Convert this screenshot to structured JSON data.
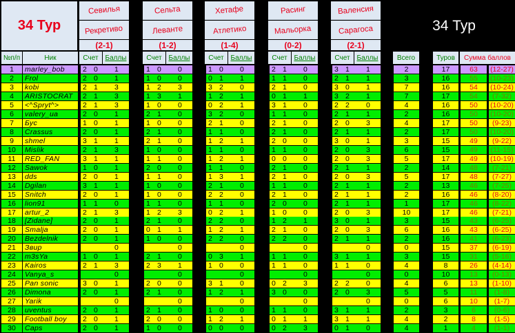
{
  "header": {
    "left_title": "34 Тур",
    "right_title": "34 Тур",
    "matches": [
      {
        "home": "Севилья",
        "away": "Рекретиво",
        "result": "(2-1)"
      },
      {
        "home": "Сельта",
        "away": "Леванте",
        "result": "(1-2)"
      },
      {
        "home": "Хетафе",
        "away": "Атлетико",
        "result": "(1-4)"
      },
      {
        "home": "Расинг",
        "away": "Мальорка",
        "result": "(0-2)"
      },
      {
        "home": "Валенсия",
        "away": "Сарагоса",
        "result": "(2-1)"
      }
    ],
    "columns": {
      "num": "№п/п",
      "nick": "Ник",
      "score": "Счет",
      "points": "Баллы",
      "total": "Всего",
      "tours": "Туров",
      "sum": "Сумма баллов"
    }
  },
  "colors": {
    "green": "#00ee00",
    "yellow": "#ffff00",
    "highlight": "#cc99ff",
    "red": "#e8001c",
    "olive": "#7a7a00"
  },
  "rows": [
    {
      "n": "1",
      "nick": "marley_bob",
      "m": [
        [
          "2",
          "0",
          "1"
        ],
        [
          "1",
          "0",
          "0"
        ],
        [
          "1",
          "0",
          "0"
        ],
        [
          "2",
          "1",
          "0"
        ],
        [
          "3",
          "1",
          "1"
        ]
      ],
      "total": "2",
      "tours": "17",
      "sum": "63",
      "range": "(12-27)"
    },
    {
      "n": "2",
      "nick": "Frol",
      "m": [
        [
          "2",
          "0",
          "1"
        ],
        [
          "1",
          "0",
          "0"
        ],
        [
          "0",
          "1",
          "1"
        ],
        [
          "1",
          "1",
          "0"
        ],
        [
          "2",
          "1",
          "1"
        ]
      ],
      "total": "3",
      "tours": "16",
      "sum": "55",
      "range": "(10-23)"
    },
    {
      "n": "3",
      "nick": "kobi",
      "m": [
        [
          "2",
          "1",
          "3"
        ],
        [
          "1",
          "2",
          "3"
        ],
        [
          "3",
          "2",
          "0"
        ],
        [
          "2",
          "1",
          "0"
        ],
        [
          "3",
          "0",
          "1"
        ]
      ],
      "total": "7",
      "tours": "16",
      "sum": "54",
      "range": "(10-24)"
    },
    {
      "n": "4",
      "nick": "ARISTOCRAT",
      "m": [
        [
          "2",
          "1",
          "3"
        ],
        [
          "1",
          "3",
          "1"
        ],
        [
          "1",
          "2",
          "1"
        ],
        [
          "0",
          "1",
          "1"
        ],
        [
          "3",
          "2",
          "1"
        ]
      ],
      "total": "7",
      "tours": "17",
      "sum": "54",
      "range": "(7-32)"
    },
    {
      "n": "5",
      "nick": "<^Spryt^>",
      "m": [
        [
          "2",
          "1",
          "3"
        ],
        [
          "1",
          "0",
          "0"
        ],
        [
          "0",
          "2",
          "1"
        ],
        [
          "3",
          "1",
          "0"
        ],
        [
          "2",
          "2",
          "0"
        ]
      ],
      "total": "4",
      "tours": "16",
      "sum": "50",
      "range": "(10-20)"
    },
    {
      "n": "6",
      "nick": "valery_ua",
      "m": [
        [
          "2",
          "0",
          "1"
        ],
        [
          "2",
          "1",
          "0"
        ],
        [
          "3",
          "2",
          "0"
        ],
        [
          "1",
          "1",
          "0"
        ],
        [
          "2",
          "1",
          "1"
        ]
      ],
      "total": "2",
      "tours": "16",
      "sum": "50",
      "range": "(10-20)"
    },
    {
      "n": "7",
      "nick": "Бус",
      "m": [
        [
          "1",
          "0",
          "1"
        ],
        [
          "1",
          "0",
          "0"
        ],
        [
          "2",
          "1",
          "0"
        ],
        [
          "2",
          "1",
          "0"
        ],
        [
          "2",
          "0",
          "3"
        ]
      ],
      "total": "4",
      "tours": "17",
      "sum": "50",
      "range": "(9-23)"
    },
    {
      "n": "8",
      "nick": "Crassus",
      "m": [
        [
          "2",
          "0",
          "1"
        ],
        [
          "2",
          "1",
          "0"
        ],
        [
          "1",
          "1",
          "0"
        ],
        [
          "2",
          "1",
          "0"
        ],
        [
          "2",
          "1",
          "1"
        ]
      ],
      "total": "2",
      "tours": "17",
      "sum": "50",
      "range": "(10-20)"
    },
    {
      "n": "9",
      "nick": "shmel",
      "m": [
        [
          "3",
          "1",
          "1"
        ],
        [
          "2",
          "1",
          "0"
        ],
        [
          "1",
          "2",
          "1"
        ],
        [
          "2",
          "0",
          "0"
        ],
        [
          "3",
          "0",
          "1"
        ]
      ],
      "total": "3",
      "tours": "15",
      "sum": "49",
      "range": "(9-22)"
    },
    {
      "n": "10",
      "nick": "Mislik",
      "m": [
        [
          "2",
          "1",
          "3"
        ],
        [
          "1",
          "0",
          "0"
        ],
        [
          "1",
          "1",
          "0"
        ],
        [
          "1",
          "1",
          "0"
        ],
        [
          "2",
          "0",
          "3"
        ]
      ],
      "total": "6",
      "tours": "15",
      "sum": "49",
      "range": "(11-15)"
    },
    {
      "n": "11",
      "nick": "RED_FAN",
      "m": [
        [
          "3",
          "1",
          "1"
        ],
        [
          "1",
          "1",
          "0"
        ],
        [
          "1",
          "2",
          "1"
        ],
        [
          "0",
          "0",
          "0"
        ],
        [
          "2",
          "0",
          "3"
        ]
      ],
      "total": "5",
      "tours": "17",
      "sum": "49",
      "range": "(10-19)"
    },
    {
      "n": "12",
      "nick": "Sawok",
      "m": [
        [
          "1",
          "0",
          "1"
        ],
        [
          "2",
          "0",
          "0"
        ],
        [
          "1",
          "1",
          "0"
        ],
        [
          "2",
          "1",
          "0"
        ],
        [
          "2",
          "1",
          "1"
        ]
      ],
      "total": "2",
      "tours": "14",
      "sum": "48",
      "range": "(7-21)"
    },
    {
      "n": "13",
      "nick": "dds",
      "m": [
        [
          "2",
          "0",
          "1"
        ],
        [
          "1",
          "1",
          "0"
        ],
        [
          "1",
          "3",
          "1"
        ],
        [
          "2",
          "1",
          "0"
        ],
        [
          "2",
          "0",
          "3"
        ]
      ],
      "total": "5",
      "tours": "17",
      "sum": "48",
      "range": "(7-27)"
    },
    {
      "n": "14",
      "nick": "Dgilan",
      "m": [
        [
          "3",
          "1",
          "1"
        ],
        [
          "1",
          "0",
          "0"
        ],
        [
          "2",
          "1",
          "0"
        ],
        [
          "1",
          "1",
          "0"
        ],
        [
          "2",
          "1",
          "1"
        ]
      ],
      "total": "2",
      "tours": "13",
      "sum": "46",
      "range": "(7-25)"
    },
    {
      "n": "15",
      "nick": "Snitch",
      "m": [
        [
          "2",
          "0",
          "1"
        ],
        [
          "1",
          "0",
          "0"
        ],
        [
          "2",
          "2",
          "0"
        ],
        [
          "2",
          "1",
          "0"
        ],
        [
          "2",
          "1",
          "1"
        ]
      ],
      "total": "2",
      "tours": "16",
      "sum": "46",
      "range": "(8-20)"
    },
    {
      "n": "16",
      "nick": "lion91",
      "m": [
        [
          "1",
          "1",
          "0"
        ],
        [
          "1",
          "1",
          "0"
        ],
        [
          "1",
          "1",
          "0"
        ],
        [
          "2",
          "0",
          "0"
        ],
        [
          "2",
          "1",
          "1"
        ]
      ],
      "total": "1",
      "tours": "17",
      "sum": "46",
      "range": "(8-22)"
    },
    {
      "n": "17",
      "nick": "artur_2",
      "m": [
        [
          "2",
          "1",
          "3"
        ],
        [
          "1",
          "2",
          "3"
        ],
        [
          "0",
          "2",
          "1"
        ],
        [
          "1",
          "0",
          "0"
        ],
        [
          "2",
          "0",
          "3"
        ]
      ],
      "total": "10",
      "tours": "17",
      "sum": "46",
      "range": "(7-21)"
    },
    {
      "n": "18",
      "nick": "[Zidane]",
      "m": [
        [
          "2",
          "0",
          "1"
        ],
        [
          "2",
          "1",
          "0"
        ],
        [
          "2",
          "2",
          "0"
        ],
        [
          "1",
          "2",
          "1"
        ],
        [
          "3",
          "0",
          "1"
        ]
      ],
      "total": "3",
      "tours": "15",
      "sum": "43",
      "range": "(6-25)"
    },
    {
      "n": "19",
      "nick": "Smalja",
      "m": [
        [
          "2",
          "0",
          "1"
        ],
        [
          "0",
          "1",
          "1"
        ],
        [
          "1",
          "2",
          "1"
        ],
        [
          "2",
          "1",
          "0"
        ],
        [
          "2",
          "0",
          "3"
        ]
      ],
      "total": "6",
      "tours": "16",
      "sum": "43",
      "range": "(6-25)"
    },
    {
      "n": "20",
      "nick": "Bezdelnik",
      "m": [
        [
          "2",
          "0",
          "1"
        ],
        [
          "1",
          "0",
          "0"
        ],
        [
          "2",
          "2",
          "0"
        ],
        [
          "2",
          "2",
          "0"
        ],
        [
          "2",
          "1",
          "1"
        ]
      ],
      "total": "2",
      "tours": "16",
      "sum": "41",
      "range": "(6-23)"
    },
    {
      "n": "21",
      "nick": "Звир",
      "m": [
        [
          "",
          "",
          "0"
        ],
        [
          "",
          "",
          "0"
        ],
        [
          "",
          "",
          "0"
        ],
        [
          "",
          "",
          "0"
        ],
        [
          "",
          "",
          "0"
        ]
      ],
      "total": "0",
      "tours": "15",
      "sum": "37",
      "range": "(6-19)"
    },
    {
      "n": "22",
      "nick": "m3sYa",
      "m": [
        [
          "1",
          "0",
          "1"
        ],
        [
          "2",
          "1",
          "0"
        ],
        [
          "0",
          "3",
          "1"
        ],
        [
          "1",
          "1",
          "0"
        ],
        [
          "3",
          "1",
          "1"
        ]
      ],
      "total": "3",
      "tours": "15",
      "sum": "31",
      "range": "(5-16)"
    },
    {
      "n": "23",
      "nick": "Kairos",
      "m": [
        [
          "2",
          "1",
          "3"
        ],
        [
          "2",
          "3",
          "1"
        ],
        [
          "1",
          "0",
          "0"
        ],
        [
          "1",
          "1",
          "0"
        ],
        [
          "1",
          "1",
          "0"
        ]
      ],
      "total": "4",
      "tours": "8",
      "sum": "26",
      "range": "(4-14)"
    },
    {
      "n": "24",
      "nick": "Vanya_s",
      "m": [
        [
          "",
          "",
          "0"
        ],
        [
          "",
          "",
          "0"
        ],
        [
          "",
          "",
          "0"
        ],
        [
          "",
          "",
          "0"
        ],
        [
          "",
          "",
          "0"
        ]
      ],
      "total": "0",
      "tours": "10",
      "sum": "13",
      "range": "(0-13)"
    },
    {
      "n": "25",
      "nick": "Pan sonic",
      "m": [
        [
          "3",
          "0",
          "1"
        ],
        [
          "2",
          "0",
          "0"
        ],
        [
          "3",
          "1",
          "0"
        ],
        [
          "0",
          "2",
          "3"
        ],
        [
          "2",
          "2",
          "0"
        ]
      ],
      "total": "4",
      "tours": "6",
      "sum": "13",
      "range": "(1-10)"
    },
    {
      "n": "26",
      "nick": "Dimona",
      "m": [
        [
          "2",
          "0",
          "1"
        ],
        [
          "2",
          "1",
          "0"
        ],
        [
          "1",
          "2",
          "1"
        ],
        [
          "3",
          "0",
          "0"
        ],
        [
          "2",
          "0",
          "3"
        ]
      ],
      "total": "5",
      "tours": "5",
      "sum": "11",
      "range": "(1-8)"
    },
    {
      "n": "27",
      "nick": "Yarik",
      "m": [
        [
          "",
          "",
          "0"
        ],
        [
          "",
          "",
          "0"
        ],
        [
          "",
          "",
          "0"
        ],
        [
          "",
          "",
          "0"
        ],
        [
          "",
          "",
          "0"
        ]
      ],
      "total": "0",
      "tours": "6",
      "sum": "10",
      "range": "(1-7)"
    },
    {
      "n": "28",
      "nick": "uventus",
      "m": [
        [
          "2",
          "0",
          "1"
        ],
        [
          "2",
          "1",
          "0"
        ],
        [
          "1",
          "0",
          "0"
        ],
        [
          "1",
          "1",
          "0"
        ],
        [
          "3",
          "1",
          "1"
        ]
      ],
      "total": "2",
      "tours": "3",
      "sum": "6",
      "range": "(0-6)"
    },
    {
      "n": "29",
      "nick": "Football boy",
      "m": [
        [
          "2",
          "0",
          "1"
        ],
        [
          "2",
          "0",
          "0"
        ],
        [
          "1",
          "2",
          "1"
        ],
        [
          "0",
          "1",
          "1"
        ],
        [
          "3",
          "1",
          "1"
        ]
      ],
      "total": "4",
      "tours": "2",
      "sum": "8",
      "range": "(1-5)"
    },
    {
      "n": "30",
      "nick": "Caps",
      "m": [
        [
          "2",
          "0",
          "1"
        ],
        [
          "1",
          "0",
          "0"
        ],
        [
          "0",
          "0",
          "0"
        ],
        [
          "0",
          "2",
          "3"
        ],
        [
          "0",
          "1",
          "0"
        ]
      ],
      "total": "4",
      "tours": "1",
      "sum": "4",
      "range": "(1-1)"
    }
  ]
}
